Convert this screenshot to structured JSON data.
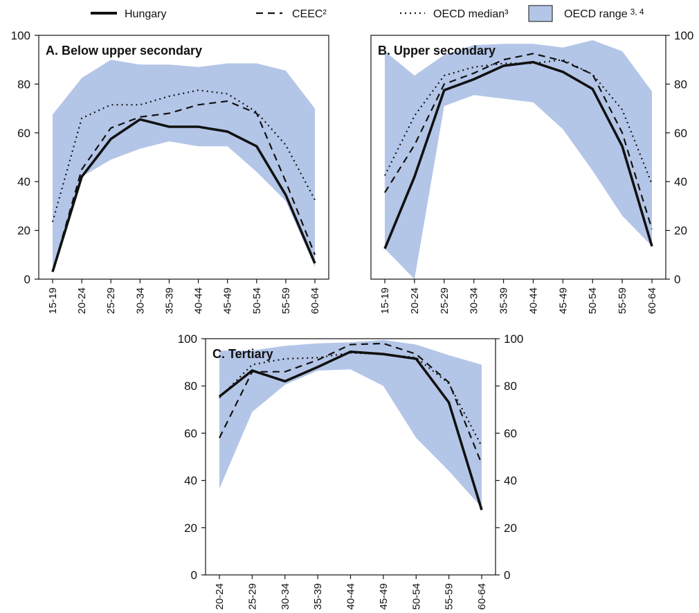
{
  "colors": {
    "range_fill": "#b4c6e7",
    "line": "#111111",
    "background": "#ffffff"
  },
  "legend": {
    "hungary": "Hungary",
    "ceec": "CEEC²",
    "median": "OECD median³",
    "range": "OECD range",
    "range_sup": "3, 4"
  },
  "chart_data": [
    {
      "type": "line",
      "title": "A. Below upper secondary",
      "categories": [
        "15-19",
        "20-24",
        "25-29",
        "30-34",
        "35-39",
        "40-44",
        "45-49",
        "50-54",
        "55-59",
        "60-64"
      ],
      "ylim": [
        0,
        100
      ],
      "yticks": [
        0,
        20,
        40,
        60,
        80,
        100
      ],
      "y_axis_side": "left",
      "series": [
        {
          "name": "Hungary",
          "style": "solid",
          "values": [
            3,
            42,
            57.5,
            65.5,
            62.5,
            62.5,
            60.5,
            54.5,
            34.5,
            6.5
          ]
        },
        {
          "name": "CEEC²",
          "style": "dashed",
          "values": [
            3,
            45,
            62,
            66.5,
            68,
            71.5,
            73,
            68,
            40,
            10
          ]
        },
        {
          "name": "OECD median³",
          "style": "dotted",
          "values": [
            23.5,
            66,
            71.5,
            71.5,
            75,
            77.5,
            76,
            68.5,
            55,
            32.5
          ]
        }
      ],
      "range": {
        "low": [
          3,
          42,
          49,
          53.5,
          56.5,
          54.5,
          54.5,
          44,
          32,
          5
        ],
        "high": [
          67.5,
          82.5,
          90,
          88,
          88,
          87,
          88.5,
          88.5,
          85.5,
          70
        ]
      }
    },
    {
      "type": "line",
      "title": "B. Upper secondary",
      "categories": [
        "15-19",
        "20-24",
        "25-29",
        "30-34",
        "35-39",
        "40-44",
        "45-49",
        "50-54",
        "55-59",
        "60-64"
      ],
      "ylim": [
        0,
        100
      ],
      "yticks": [
        0,
        20,
        40,
        60,
        80,
        100
      ],
      "y_axis_side": "right",
      "series": [
        {
          "name": "Hungary",
          "style": "solid",
          "values": [
            12.5,
            42,
            77.5,
            82,
            87.5,
            89,
            85,
            78,
            54.5,
            13.5
          ]
        },
        {
          "name": "CEEC²",
          "style": "dashed",
          "values": [
            35.5,
            55,
            80,
            84.5,
            90,
            92.5,
            89.5,
            84,
            60,
            20.5
          ]
        },
        {
          "name": "OECD median³",
          "style": "dotted",
          "values": [
            42.5,
            67,
            83.5,
            87,
            88.5,
            88.5,
            90,
            84,
            69.5,
            39
          ]
        }
      ],
      "range": {
        "low": [
          12.5,
          0,
          71,
          75.5,
          74,
          72.5,
          61.5,
          44.5,
          26,
          13.5
        ],
        "high": [
          93.5,
          83.5,
          92,
          96,
          96.5,
          96.5,
          95,
          98,
          93.5,
          77
        ]
      }
    },
    {
      "type": "line",
      "title": "C. Tertiary",
      "categories": [
        "20-24",
        "25-29",
        "30-34",
        "35-39",
        "40-44",
        "45-49",
        "50-54",
        "55-59",
        "60-64"
      ],
      "ylim": [
        0,
        100
      ],
      "yticks": [
        0,
        20,
        40,
        60,
        80,
        100
      ],
      "y_axis_side": "both",
      "series": [
        {
          "name": "Hungary",
          "style": "solid",
          "values": [
            75.5,
            86.5,
            82,
            88,
            94.5,
            93.5,
            91.5,
            73,
            27.5
          ]
        },
        {
          "name": "CEEC²",
          "style": "dashed",
          "values": [
            58,
            86,
            86,
            91,
            97.5,
            98,
            93.5,
            81.5,
            47
          ]
        },
        {
          "name": "OECD median³",
          "style": "dotted",
          "values": [
            75,
            89,
            91.5,
            92,
            94,
            93.5,
            92,
            81,
            54.5
          ]
        }
      ],
      "range": {
        "low": [
          36.5,
          69,
          80.5,
          86.5,
          87,
          80,
          58,
          44,
          28.5
        ],
        "high": [
          95,
          95,
          97,
          98,
          98.5,
          99.5,
          97.5,
          93,
          89
        ]
      }
    }
  ]
}
